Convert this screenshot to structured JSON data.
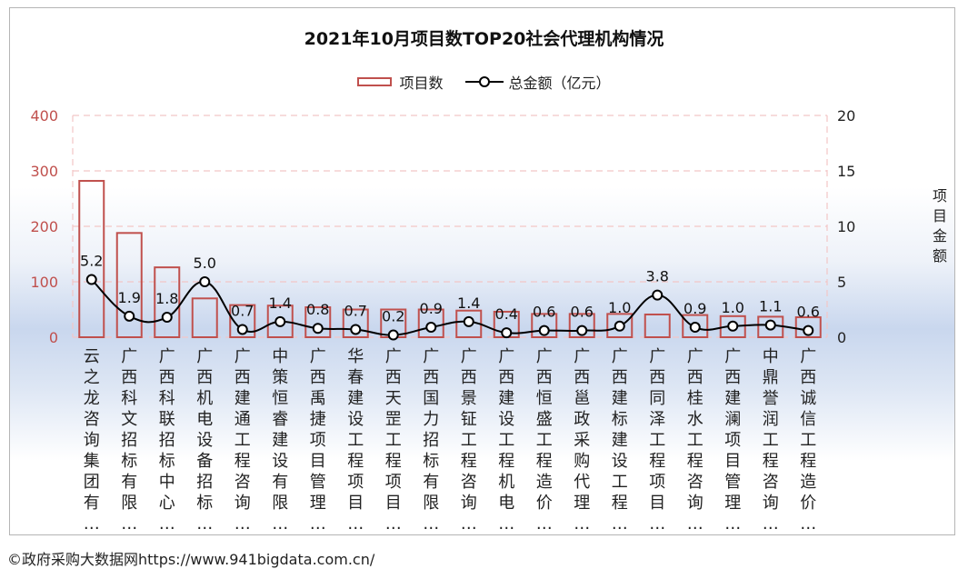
{
  "chart_data": {
    "type": "bar",
    "title": "2021年10月项目数TOP20社会代理机构情况",
    "categories": [
      "云之龙咨询集团有…",
      "广西科文招标有限…",
      "广西科联招标中心…",
      "广西机电设备招标…",
      "广西建通工程咨询…",
      "中策恒睿建设有限…",
      "广西禹捷项目管理…",
      "华春建设工程项目…",
      "广西天罡工程项目…",
      "广西国力招标有限…",
      "广西景钲工程咨询…",
      "广西建设工程机电…",
      "广西恒盛工程造价…",
      "广西邕政采购代理…",
      "广西建标建设工程…",
      "广西同泽工程项目…",
      "广西桂水工程咨询…",
      "广西建澜项目管理…",
      "中鼎誉润工程咨询…",
      "广西诚信工程造价…"
    ],
    "series": [
      {
        "name": "项目数",
        "type": "bar",
        "axis": "left",
        "color": "#c0504d",
        "values": [
          282,
          188,
          126,
          70,
          58,
          57,
          54,
          50,
          50,
          50,
          48,
          46,
          42,
          42,
          42,
          41,
          40,
          38,
          37,
          36
        ]
      },
      {
        "name": "总金额（亿元）",
        "type": "line",
        "axis": "right",
        "color": "#000000",
        "values": [
          5.2,
          1.9,
          1.8,
          5.0,
          0.7,
          1.4,
          0.8,
          0.7,
          0.2,
          0.9,
          1.4,
          0.4,
          0.6,
          0.6,
          1.0,
          3.8,
          0.9,
          1.0,
          1.1,
          0.6
        ],
        "labels": [
          "5.2",
          "1.9",
          "1.8",
          "5.0",
          "0.7",
          "1.4",
          "0.8",
          "0.7",
          "0.2",
          "0.9",
          "1.4",
          "0.4",
          "0.6",
          "0.6",
          "1.0",
          "3.8",
          "0.9",
          "1.0",
          "1.1",
          "0.6"
        ]
      }
    ],
    "y_left": {
      "ylim": [
        0,
        400
      ],
      "ticks": [
        "0",
        "100",
        "200",
        "300",
        "400"
      ],
      "tick_color": "#c0504d"
    },
    "y_right": {
      "ylim": [
        0,
        20
      ],
      "ticks": [
        "0",
        "5",
        "10",
        "15",
        "20"
      ],
      "label": "项目金额"
    },
    "grid": "dashed-horizontal",
    "legend_position": "top-center"
  },
  "footer": "©政府采购大数据网https://www.941bigdata.com.cn/"
}
